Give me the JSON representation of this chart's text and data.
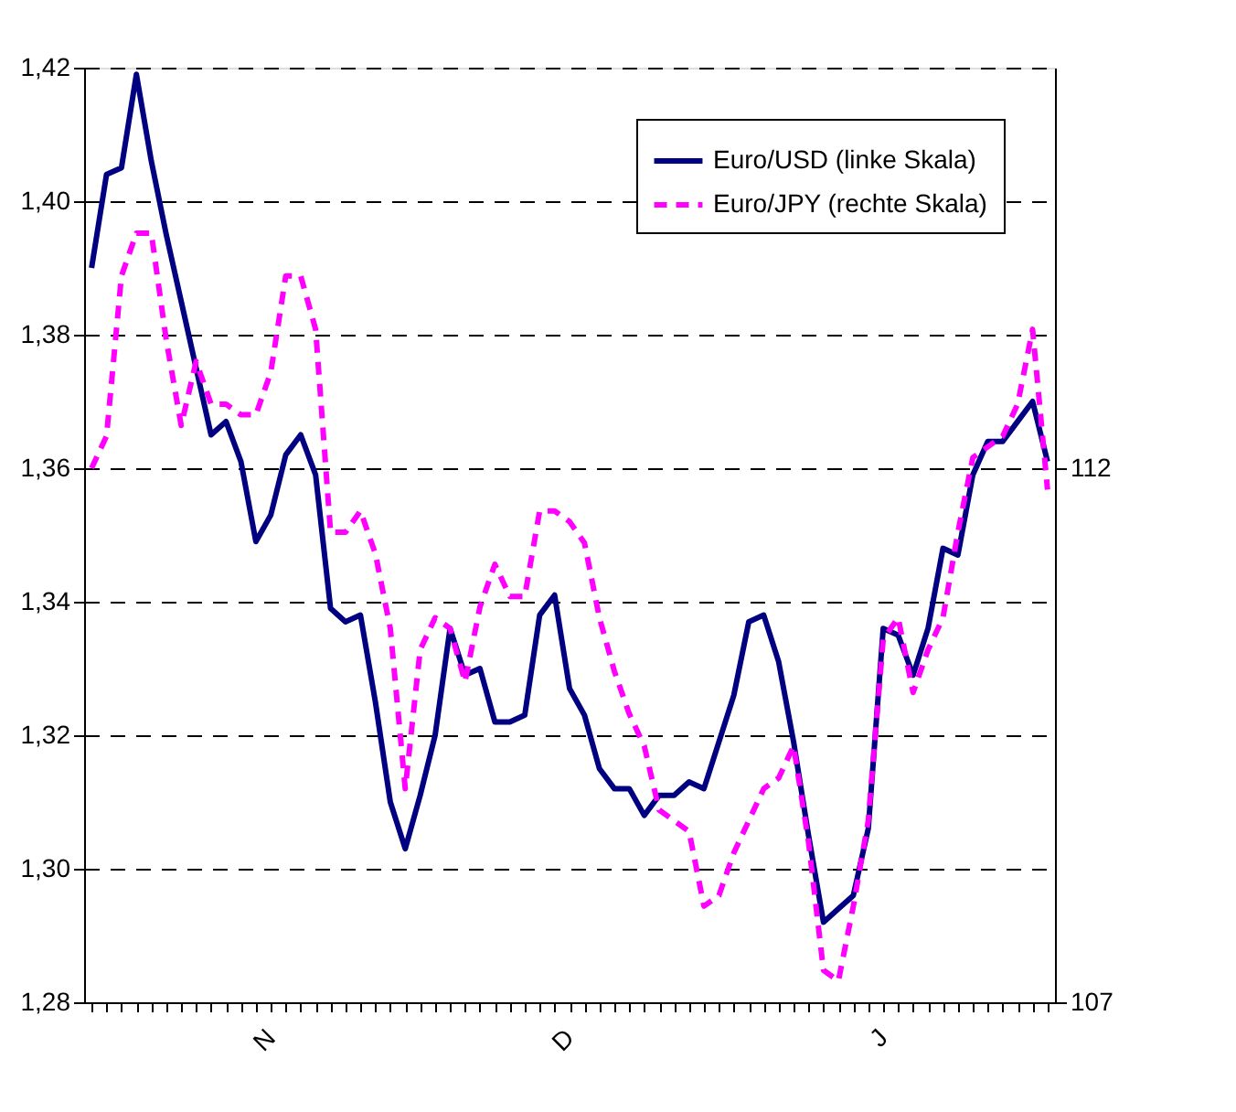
{
  "chart_data": {
    "type": "line",
    "categories": [
      null,
      null,
      null,
      null,
      null,
      null,
      null,
      null,
      null,
      null,
      null,
      null,
      "N",
      null,
      null,
      null,
      null,
      null,
      null,
      null,
      null,
      null,
      null,
      null,
      null,
      null,
      null,
      null,
      null,
      null,
      null,
      null,
      "D",
      null,
      null,
      null,
      null,
      null,
      null,
      null,
      null,
      null,
      null,
      null,
      null,
      null,
      null,
      null,
      null,
      null,
      null,
      null,
      null,
      "J",
      null,
      null,
      null,
      null,
      null,
      null,
      null,
      null,
      null,
      null,
      null
    ],
    "series": [
      {
        "name": "Euro/USD (linke Skala)",
        "color": "#000080",
        "line_style": "solid",
        "values": [
          1.39,
          1.404,
          1.405,
          1.419,
          1.406,
          1.395,
          1.385,
          1.375,
          1.365,
          1.367,
          1.361,
          1.349,
          1.353,
          1.362,
          1.365,
          1.359,
          1.339,
          1.337,
          1.338,
          1.325,
          1.31,
          1.303,
          1.311,
          1.32,
          1.336,
          1.329,
          1.33,
          1.322,
          1.322,
          1.323,
          1.338,
          1.341,
          1.327,
          1.323,
          1.315,
          1.312,
          1.312,
          1.308,
          1.311,
          1.311,
          1.313,
          1.312,
          1.319,
          1.326,
          1.337,
          1.338,
          1.331,
          1.319,
          1.305,
          1.292,
          1.294,
          1.296,
          1.306,
          1.336,
          1.335,
          1.329,
          1.336,
          1.348,
          1.347,
          1.359,
          1.364,
          1.364,
          1.367,
          1.37,
          1.361
        ]
      },
      {
        "name": "Euro/JPY (rechte Skala)",
        "color": "#ff00ff",
        "line_style": "dashed",
        "axis": "y2",
        "values": [
          112.0,
          112.3,
          113.8,
          114.2,
          114.2,
          113.2,
          112.4,
          113.0,
          112.6,
          112.6,
          112.5,
          112.5,
          112.9,
          113.8,
          113.8,
          113.3,
          111.4,
          111.4,
          111.6,
          111.2,
          110.5,
          109.0,
          110.3,
          110.6,
          110.5,
          110.0,
          110.7,
          111.1,
          110.8,
          110.8,
          111.6,
          111.6,
          111.5,
          111.3,
          110.6,
          110.1,
          109.7,
          109.4,
          108.8,
          108.7,
          108.6,
          107.9,
          108.0,
          108.4,
          108.7,
          109.0,
          109.1,
          109.4,
          108.5,
          107.3,
          107.2,
          107.9,
          108.7,
          110.4,
          110.6,
          109.9,
          110.3,
          110.6,
          111.4,
          112.1,
          112.2,
          112.3,
          112.6,
          113.3,
          111.8
        ]
      }
    ],
    "ylim": [
      1.28,
      1.42
    ],
    "yticks": [
      {
        "value": 1.28,
        "label": "1,28"
      },
      {
        "value": 1.3,
        "label": "1,30"
      },
      {
        "value": 1.32,
        "label": "1,32"
      },
      {
        "value": 1.34,
        "label": "1,34"
      },
      {
        "value": 1.36,
        "label": "1,36"
      },
      {
        "value": 1.38,
        "label": "1,38"
      },
      {
        "value": 1.4,
        "label": "1,40"
      },
      {
        "value": 1.42,
        "label": "1,42"
      }
    ],
    "y2lim": [
      107,
      115.75
    ],
    "y2ticks": [
      107,
      112
    ],
    "grid": "y",
    "legend": "top right"
  }
}
